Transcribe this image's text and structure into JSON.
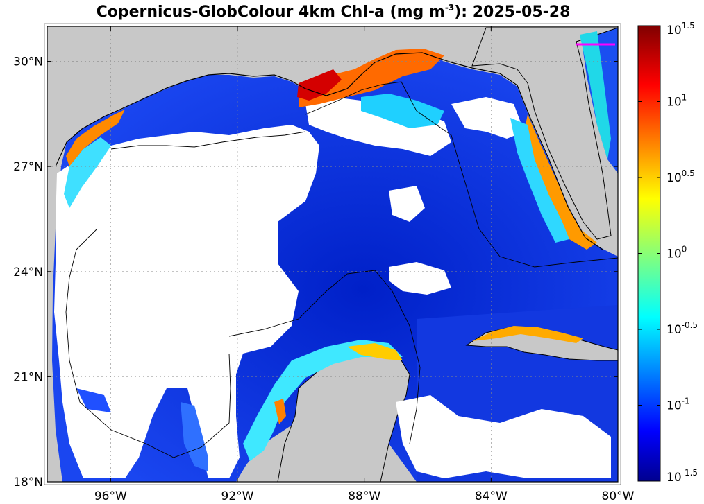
{
  "title": {
    "prefix": "Copernicus-GlobColour 4km Chl-a (mg m",
    "exponent": "-3",
    "suffix": "): 2025-05-28"
  },
  "map": {
    "lon_range": [
      -98,
      -80
    ],
    "lat_range": [
      18,
      31
    ],
    "lon_ticks": [
      {
        "value": -96,
        "label": "96°W"
      },
      {
        "value": -92,
        "label": "92°W"
      },
      {
        "value": -88,
        "label": "88°W"
      },
      {
        "value": -84,
        "label": "84°W"
      },
      {
        "value": -80,
        "label": "80°W"
      }
    ],
    "lat_ticks": [
      {
        "value": 30,
        "label": "30°N"
      },
      {
        "value": 27,
        "label": "27°N"
      },
      {
        "value": 24,
        "label": "24°N"
      },
      {
        "value": 21,
        "label": "21°N"
      },
      {
        "value": 18,
        "label": "18°N"
      }
    ],
    "grid": true,
    "colors": {
      "land": "#c8c8c8",
      "no_data": "#ffffff",
      "low_chl": "#0a2fd8",
      "coastline": "#000000",
      "eez_line": "#000000",
      "marker": "#ff00ff"
    }
  },
  "colorbar": {
    "scale": "log10",
    "range_log": [
      -1.5,
      1.5
    ],
    "colormap": "jet",
    "ticks": [
      {
        "base": "10",
        "exp": "1.5",
        "value": 1.5
      },
      {
        "base": "10",
        "exp": "1",
        "value": 1.0
      },
      {
        "base": "10",
        "exp": "0.5",
        "value": 0.5
      },
      {
        "base": "10",
        "exp": "0",
        "value": 0.0
      },
      {
        "base": "10",
        "exp": "-0.5",
        "value": -0.5
      },
      {
        "base": "10",
        "exp": "-1",
        "value": -1.0
      },
      {
        "base": "10",
        "exp": "-1.5",
        "value": -1.5
      }
    ]
  }
}
